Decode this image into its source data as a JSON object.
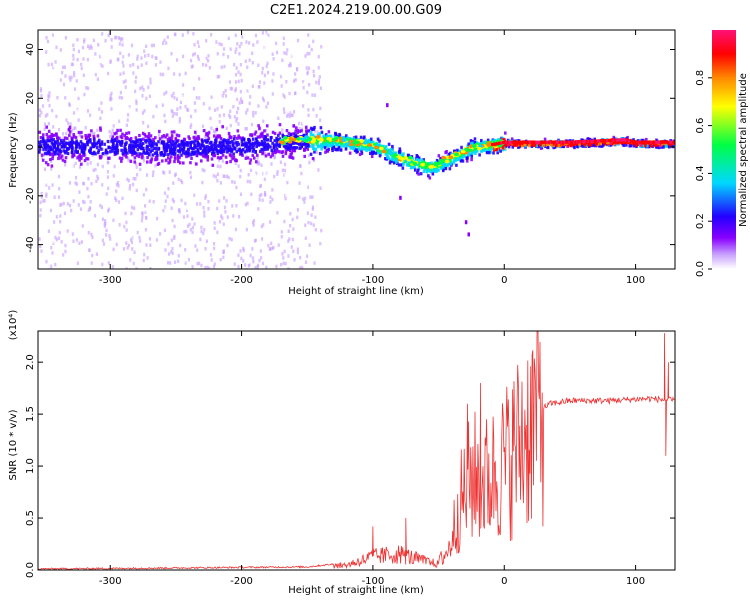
{
  "title": "C2E1.2024.219.00.00.G09",
  "chart_data": [
    {
      "type": "heatmap",
      "xlabel": "Height of straight line (km)",
      "ylabel": "Frequency (Hz)",
      "xlim": [
        -355,
        130
      ],
      "ylim": [
        -50,
        48
      ],
      "xticks": [
        -300,
        -200,
        -100,
        0,
        100
      ],
      "yticks": [
        -40,
        -20,
        0,
        20,
        40
      ],
      "colorbar": {
        "label": "Normalized spectral amplitude",
        "range": [
          0,
          1
        ],
        "ticks": [
          0.0,
          0.2,
          0.4,
          0.6,
          0.8
        ],
        "tick_labels": [
          "0.0",
          "0.2",
          "0.4",
          "0.6",
          "0.8"
        ],
        "colors": [
          "#ffffff",
          "#c9a3ff",
          "#8800ff",
          "#2200ff",
          "#00d8ff",
          "#00ff44",
          "#ffff00",
          "#ff8800",
          "#ff0000",
          "#ff1177"
        ]
      },
      "ridge_center": [
        {
          "x": -355,
          "y": 1
        },
        {
          "x": -300,
          "y": 1
        },
        {
          "x": -250,
          "y": 0
        },
        {
          "x": -200,
          "y": 1
        },
        {
          "x": -160,
          "y": 3
        },
        {
          "x": -130,
          "y": 3
        },
        {
          "x": -100,
          "y": 1
        },
        {
          "x": -85,
          "y": -3
        },
        {
          "x": -70,
          "y": -6
        },
        {
          "x": -55,
          "y": -8
        },
        {
          "x": -40,
          "y": -4
        },
        {
          "x": -25,
          "y": 0
        },
        {
          "x": -10,
          "y": 1
        },
        {
          "x": 0,
          "y": 2
        },
        {
          "x": 50,
          "y": 2
        },
        {
          "x": 90,
          "y": 3
        },
        {
          "x": 100,
          "y": 2
        },
        {
          "x": 130,
          "y": 2
        }
      ]
    },
    {
      "type": "line",
      "xlabel": "Height of straight line (km)",
      "ylabel": "SNR (10 * v/v)",
      "y_scale_label": "(x10⁴)",
      "xlim": [
        -355,
        130
      ],
      "ylim": [
        0,
        2.3
      ],
      "xticks": [
        -300,
        -200,
        -100,
        0,
        100
      ],
      "yticks": [
        0.0,
        0.5,
        1.0,
        1.5,
        2.0
      ],
      "ytick_labels": [
        "0.0",
        "0.5",
        "1.0",
        "1.5",
        "2.0"
      ],
      "series": [
        {
          "name": "SNR",
          "color": "#ee3333",
          "envelope": [
            {
              "x": -355,
              "y": 0.01
            },
            {
              "x": -250,
              "y": 0.02
            },
            {
              "x": -150,
              "y": 0.03
            },
            {
              "x": -120,
              "y": 0.07
            },
            {
              "x": -100,
              "y": 0.18
            },
            {
              "x": -80,
              "y": 0.22
            },
            {
              "x": -60,
              "y": 0.12
            },
            {
              "x": -50,
              "y": 0.08
            },
            {
              "x": -42,
              "y": 0.2
            },
            {
              "x": -35,
              "y": 0.6
            },
            {
              "x": -25,
              "y": 0.9
            },
            {
              "x": -15,
              "y": 0.85
            },
            {
              "x": -5,
              "y": 0.95
            },
            {
              "x": 5,
              "y": 1.1
            },
            {
              "x": 15,
              "y": 1.3
            },
            {
              "x": 25,
              "y": 1.52
            },
            {
              "x": 35,
              "y": 1.6
            },
            {
              "x": 50,
              "y": 1.63
            },
            {
              "x": 80,
              "y": 1.63
            },
            {
              "x": 110,
              "y": 1.65
            },
            {
              "x": 130,
              "y": 1.63
            }
          ],
          "spikes": [
            {
              "x": -100,
              "y": 0.42
            },
            {
              "x": -75,
              "y": 0.5
            },
            {
              "x": -28,
              "y": 1.6
            },
            {
              "x": -18,
              "y": 1.8
            },
            {
              "x": -8,
              "y": 1.25
            },
            {
              "x": 122,
              "y": 2.28
            },
            {
              "x": 123,
              "y": 1.1
            },
            {
              "x": 125,
              "y": 2.0
            }
          ]
        }
      ]
    }
  ]
}
